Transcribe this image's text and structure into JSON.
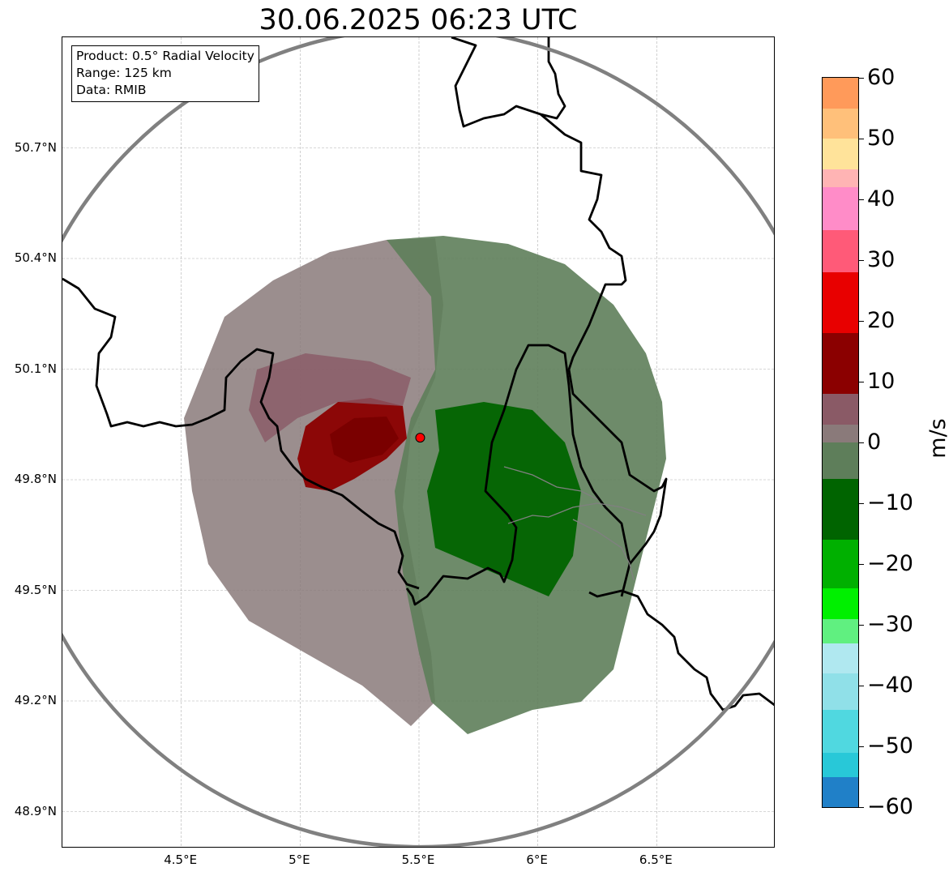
{
  "title": "30.06.2025 06:23 UTC",
  "info_box": {
    "product": "Product: 0.5° Radial Velocity",
    "range": "Range: 125 km",
    "data": "Data: RMIB"
  },
  "map": {
    "lon_range": [
      4.0,
      7.0
    ],
    "lat_range": [
      48.8,
      51.0
    ],
    "lat_ticks": [
      "50.7°N",
      "50.4°N",
      "50.1°N",
      "49.8°N",
      "49.5°N",
      "49.2°N",
      "48.9°N"
    ],
    "lat_values": [
      50.7,
      50.4,
      50.1,
      49.8,
      49.5,
      49.2,
      48.9
    ],
    "lon_ticks": [
      "4.5°E",
      "5°E",
      "5.5°E",
      "6°E",
      "6.5°E"
    ],
    "lon_values": [
      4.5,
      5.0,
      5.5,
      6.0,
      6.5
    ],
    "radar_site": {
      "lon": 5.505,
      "lat": 49.914
    },
    "range_ring_km": 125,
    "colors": {
      "border": "#000000",
      "range_ring": "#808080",
      "gridline": "#b0b0b0",
      "radar_marker": "#ff0000"
    }
  },
  "colorbar": {
    "unit": "m/s",
    "ticks": [
      "60",
      "50",
      "40",
      "30",
      "20",
      "10",
      "0",
      "−10",
      "−20",
      "−30",
      "−40",
      "−50",
      "−60"
    ],
    "min": -60,
    "max": 60,
    "bands": [
      {
        "from": 55,
        "to": 60,
        "color": "#ff9a5a"
      },
      {
        "from": 50,
        "to": 55,
        "color": "#ffc07a"
      },
      {
        "from": 45,
        "to": 50,
        "color": "#ffe39a"
      },
      {
        "from": 42,
        "to": 45,
        "color": "#ffb4b4"
      },
      {
        "from": 35,
        "to": 42,
        "color": "#ff8cc8"
      },
      {
        "from": 28,
        "to": 35,
        "color": "#ff5a78"
      },
      {
        "from": 18,
        "to": 28,
        "color": "#e80000"
      },
      {
        "from": 8,
        "to": 18,
        "color": "#8b0000"
      },
      {
        "from": 3,
        "to": 8,
        "color": "#8a5a66"
      },
      {
        "from": 0,
        "to": 3,
        "color": "#8a7a7a"
      },
      {
        "from": -6,
        "to": 0,
        "color": "#5e7e5a"
      },
      {
        "from": -16,
        "to": -6,
        "color": "#006400"
      },
      {
        "from": -24,
        "to": -16,
        "color": "#00b000"
      },
      {
        "from": -29,
        "to": -24,
        "color": "#00f000"
      },
      {
        "from": -33,
        "to": -29,
        "color": "#60f080"
      },
      {
        "from": -38,
        "to": -33,
        "color": "#b0e8f0"
      },
      {
        "from": -44,
        "to": -38,
        "color": "#90e0e8"
      },
      {
        "from": -51,
        "to": -44,
        "color": "#50d8e0"
      },
      {
        "from": -55,
        "to": -51,
        "color": "#28c8d8"
      },
      {
        "from": -60,
        "to": -55,
        "color": "#2080c8"
      }
    ]
  }
}
